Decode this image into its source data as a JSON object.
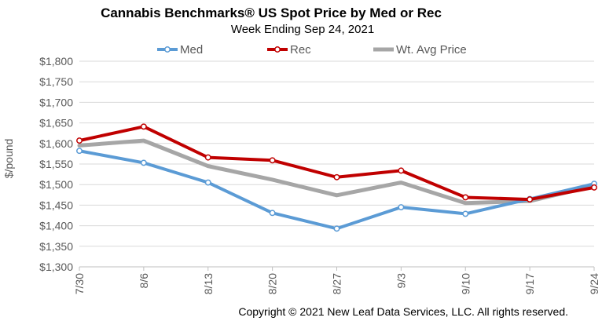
{
  "chart_data": {
    "type": "line",
    "title": "Cannabis Benchmarks® US Spot Price by Med or Rec",
    "subtitle": "Week Ending Sep 24, 2021",
    "xlabel": "",
    "ylabel": "$/pound",
    "categories": [
      "7/30",
      "8/6",
      "8/13",
      "8/20",
      "8/27",
      "9/3",
      "9/10",
      "9/17",
      "9/24"
    ],
    "ylim": [
      1300,
      1800
    ],
    "yticks": [
      1800,
      1750,
      1700,
      1650,
      1600,
      1550,
      1500,
      1450,
      1400,
      1350,
      1300
    ],
    "ytick_labels": [
      "$1,800",
      "$1,750",
      "$1,700",
      "$1,650",
      "$1,600",
      "$1,550",
      "$1,500",
      "$1,450",
      "$1,400",
      "$1,350",
      "$1,300"
    ],
    "grid": true,
    "legend": "top",
    "series": [
      {
        "name": "Med",
        "color": "#5b9bd5",
        "values": [
          1582,
          1553,
          1505,
          1431,
          1393,
          1445,
          1429,
          1465,
          1502
        ]
      },
      {
        "name": "Rec",
        "color": "#c00000",
        "values": [
          1607,
          1641,
          1566,
          1559,
          1518,
          1534,
          1469,
          1464,
          1493
        ]
      },
      {
        "name": "Wt. Avg Price",
        "color": "#a6a6a6",
        "values": [
          1595,
          1607,
          1545,
          1512,
          1474,
          1505,
          1455,
          1460,
          1497
        ]
      }
    ]
  },
  "copyright": "Copyright © 2021 New Leaf Data Services, LLC. All rights reserved."
}
